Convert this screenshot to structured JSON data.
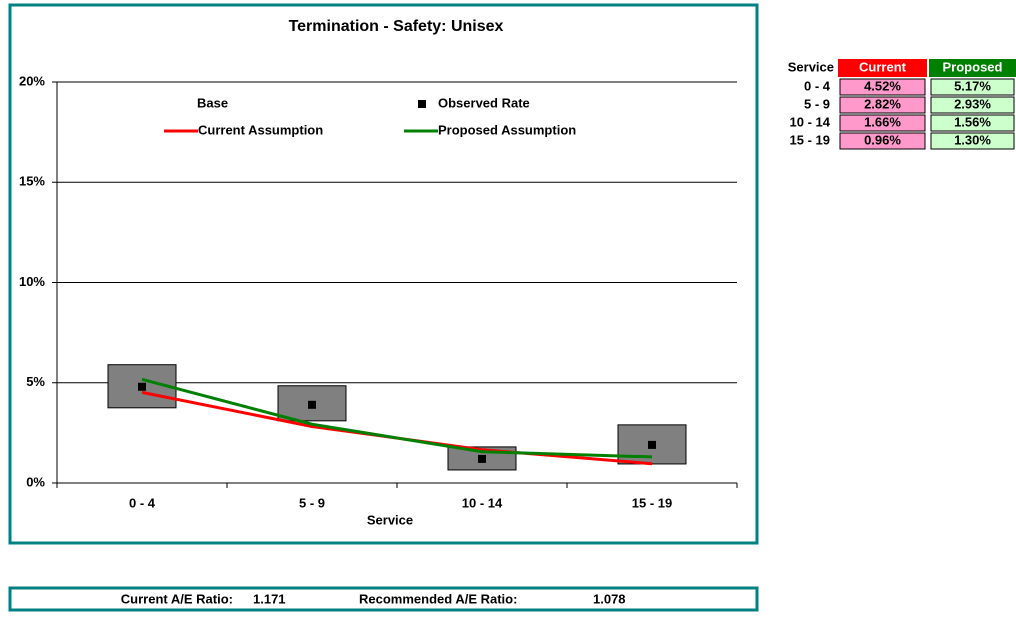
{
  "chart_data": {
    "type": "rate-chart",
    "title": "Termination - Safety: Unisex",
    "x_label": "Service",
    "categories": [
      "0 - 4",
      "5 - 9",
      "10 - 14",
      "15 - 19"
    ],
    "ylim": [
      0,
      20
    ],
    "yticks": [
      {
        "value": 0,
        "label": "0%"
      },
      {
        "value": 5,
        "label": "5%"
      },
      {
        "value": 10,
        "label": "10%"
      },
      {
        "value": 15,
        "label": "15%"
      },
      {
        "value": 20,
        "label": "20%"
      }
    ],
    "grid": true,
    "series": [
      {
        "name": "Base",
        "mark": "box",
        "color": "#808080",
        "low": [
          3.75,
          3.1,
          0.65,
          0.95
        ],
        "high": [
          5.9,
          4.85,
          1.8,
          2.9
        ]
      },
      {
        "name": "Observed Rate",
        "mark": "point",
        "color": "#000000",
        "values": [
          4.8,
          3.9,
          1.2,
          1.9
        ]
      },
      {
        "name": "Current Assumption",
        "mark": "line",
        "color": "#ff0000",
        "values": [
          4.52,
          2.82,
          1.66,
          0.96
        ],
        "value_labels": [
          "4.52%",
          "2.82%",
          "1.66%",
          "0.96%"
        ]
      },
      {
        "name": "Proposed Assumption",
        "mark": "line",
        "color": "#008000",
        "values": [
          5.17,
          2.93,
          1.56,
          1.3
        ],
        "value_labels": [
          "5.17%",
          "2.93%",
          "1.56%",
          "1.30%"
        ]
      }
    ]
  },
  "table": {
    "header": [
      "Service",
      "Current",
      "Proposed"
    ]
  },
  "summary": {
    "current_label": "Current A/E Ratio:",
    "current_value": "1.171",
    "recommended_label": "Recommended A/E Ratio:",
    "recommended_value": "1.078"
  }
}
